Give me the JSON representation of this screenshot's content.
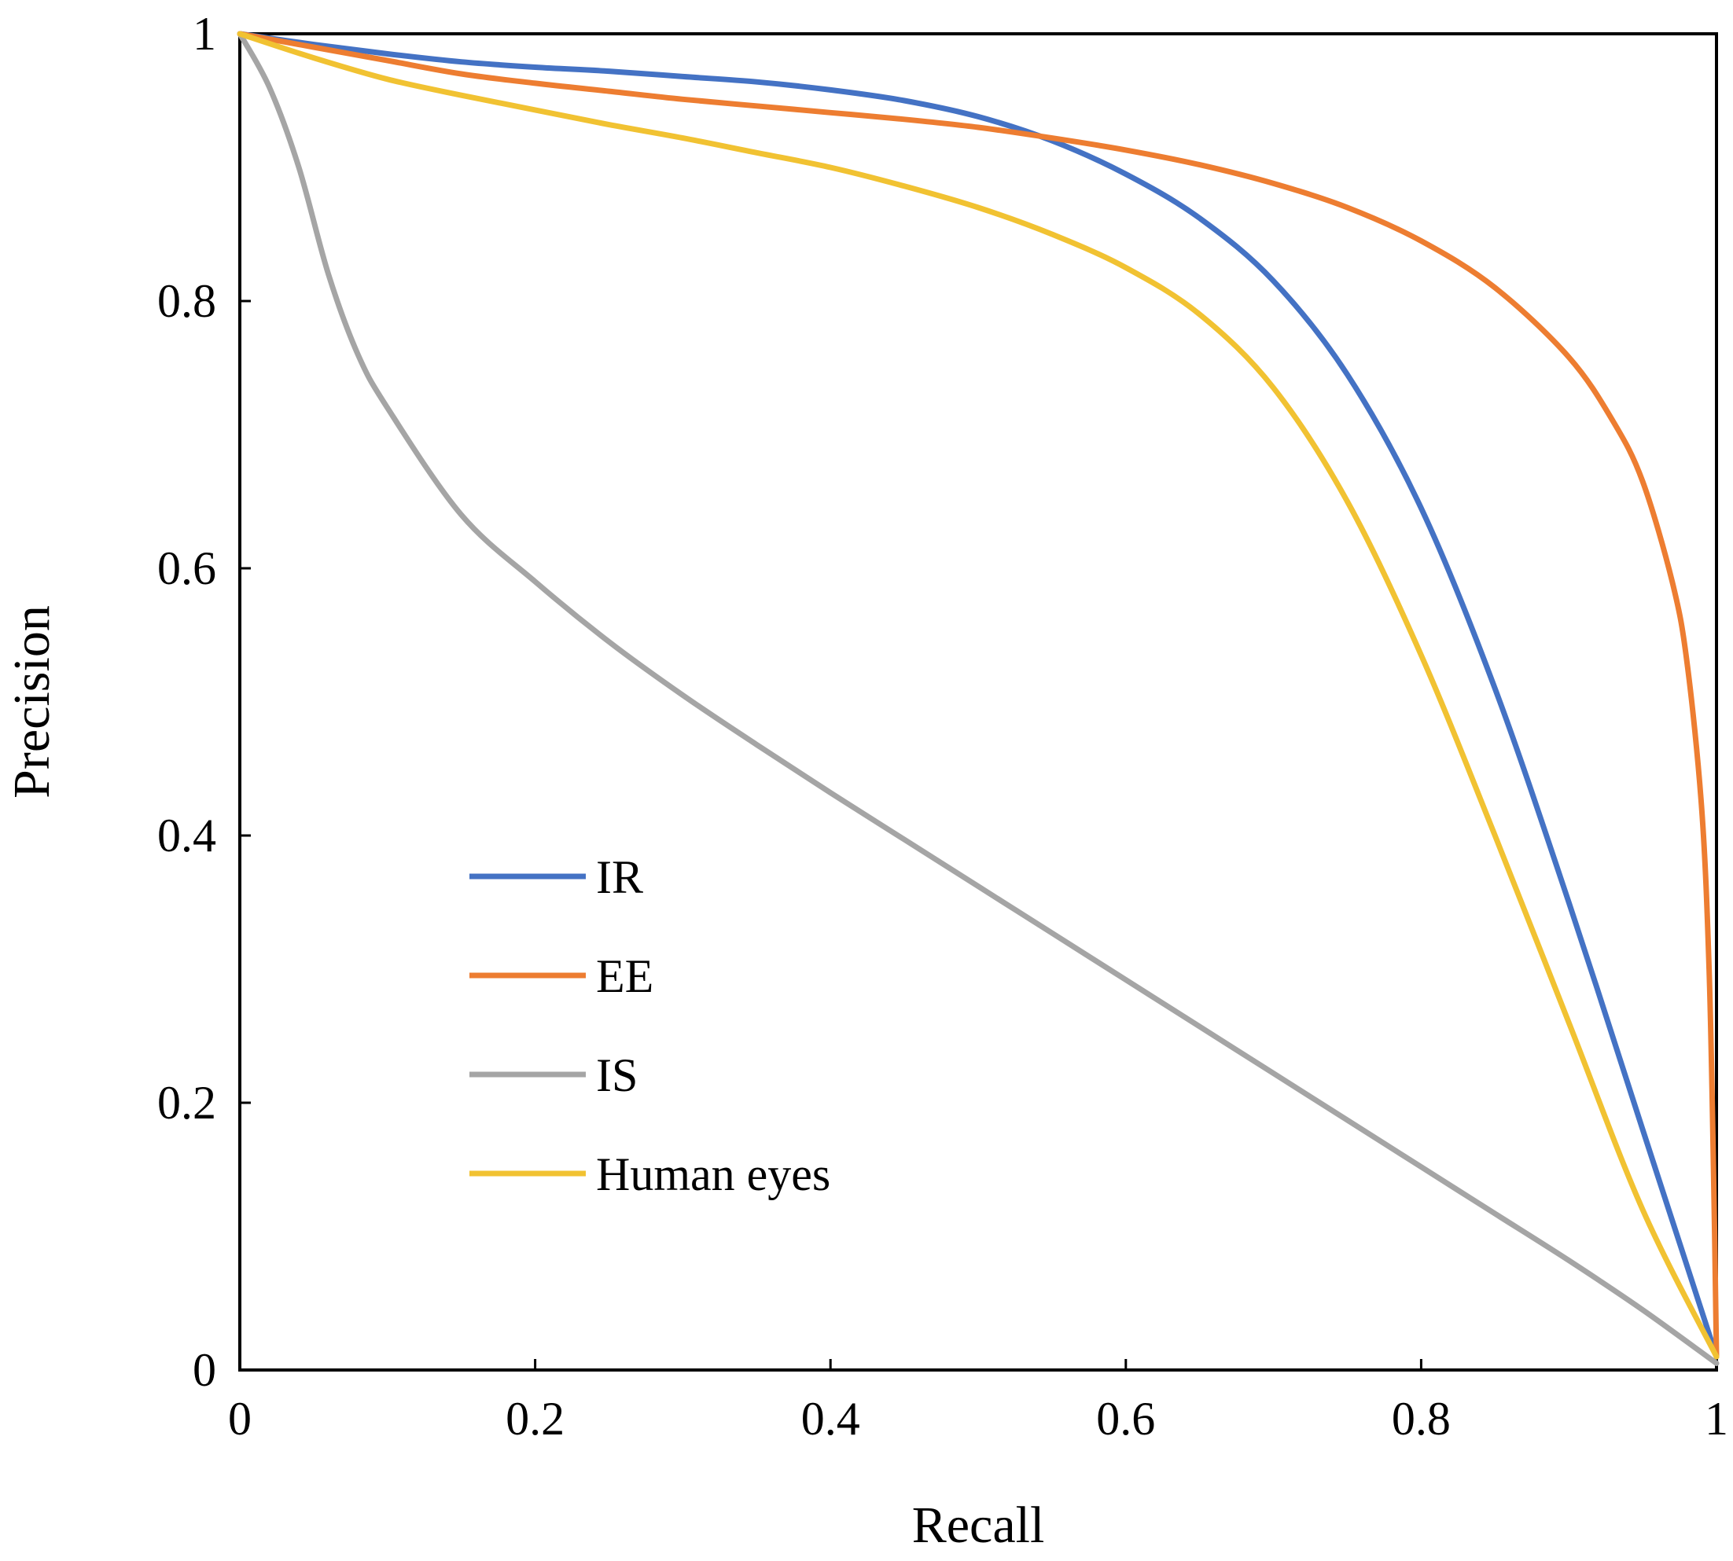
{
  "chart_data": {
    "type": "line",
    "title": "",
    "xlabel": "Recall",
    "ylabel": "Precision",
    "xlim": [
      0,
      1
    ],
    "ylim": [
      0,
      1
    ],
    "grid": false,
    "legend_position": "center-left",
    "x_ticks": [
      {
        "value": 0,
        "label": "0"
      },
      {
        "value": 0.2,
        "label": "0.2"
      },
      {
        "value": 0.4,
        "label": "0.4"
      },
      {
        "value": 0.6,
        "label": "0.6"
      },
      {
        "value": 0.8,
        "label": "0.8"
      },
      {
        "value": 1,
        "label": "1"
      }
    ],
    "y_ticks": [
      {
        "value": 0,
        "label": "0"
      },
      {
        "value": 0.2,
        "label": "0.2"
      },
      {
        "value": 0.4,
        "label": "0.4"
      },
      {
        "value": 0.6,
        "label": "0.6"
      },
      {
        "value": 0.8,
        "label": "0.8"
      },
      {
        "value": 1,
        "label": "1"
      }
    ],
    "series": [
      {
        "name": "IR",
        "color": "#4472C4",
        "points": [
          [
            0,
            1
          ],
          [
            0.05,
            0.992
          ],
          [
            0.1,
            0.985
          ],
          [
            0.15,
            0.979
          ],
          [
            0.2,
            0.975
          ],
          [
            0.25,
            0.972
          ],
          [
            0.3,
            0.968
          ],
          [
            0.35,
            0.964
          ],
          [
            0.4,
            0.958
          ],
          [
            0.45,
            0.95
          ],
          [
            0.5,
            0.938
          ],
          [
            0.55,
            0.92
          ],
          [
            0.6,
            0.895
          ],
          [
            0.65,
            0.862
          ],
          [
            0.7,
            0.815
          ],
          [
            0.75,
            0.745
          ],
          [
            0.8,
            0.645
          ],
          [
            0.85,
            0.51
          ],
          [
            0.9,
            0.35
          ],
          [
            0.95,
            0.18
          ],
          [
            0.975,
            0.095
          ],
          [
            1,
            0.01
          ]
        ]
      },
      {
        "name": "EE",
        "color": "#ED7D31",
        "points": [
          [
            0,
            1
          ],
          [
            0.05,
            0.99
          ],
          [
            0.1,
            0.98
          ],
          [
            0.15,
            0.97
          ],
          [
            0.2,
            0.963
          ],
          [
            0.25,
            0.957
          ],
          [
            0.3,
            0.951
          ],
          [
            0.35,
            0.946
          ],
          [
            0.4,
            0.941
          ],
          [
            0.45,
            0.936
          ],
          [
            0.5,
            0.93
          ],
          [
            0.55,
            0.922
          ],
          [
            0.6,
            0.913
          ],
          [
            0.65,
            0.902
          ],
          [
            0.7,
            0.888
          ],
          [
            0.75,
            0.87
          ],
          [
            0.8,
            0.845
          ],
          [
            0.85,
            0.81
          ],
          [
            0.9,
            0.758
          ],
          [
            0.93,
            0.71
          ],
          [
            0.95,
            0.665
          ],
          [
            0.97,
            0.59
          ],
          [
            0.98,
            0.53
          ],
          [
            0.99,
            0.42
          ],
          [
            0.995,
            0.3
          ],
          [
            0.998,
            0.15
          ],
          [
            1,
            0.01
          ]
        ]
      },
      {
        "name": "IS",
        "color": "#A5A5A5",
        "points": [
          [
            0,
            1
          ],
          [
            0.02,
            0.96
          ],
          [
            0.04,
            0.9
          ],
          [
            0.06,
            0.82
          ],
          [
            0.08,
            0.76
          ],
          [
            0.1,
            0.72
          ],
          [
            0.15,
            0.64
          ],
          [
            0.2,
            0.59
          ],
          [
            0.25,
            0.545
          ],
          [
            0.3,
            0.505
          ],
          [
            0.35,
            0.468
          ],
          [
            0.4,
            0.432
          ],
          [
            0.45,
            0.397
          ],
          [
            0.5,
            0.362
          ],
          [
            0.55,
            0.327
          ],
          [
            0.6,
            0.292
          ],
          [
            0.65,
            0.257
          ],
          [
            0.7,
            0.222
          ],
          [
            0.75,
            0.187
          ],
          [
            0.8,
            0.152
          ],
          [
            0.85,
            0.117
          ],
          [
            0.9,
            0.082
          ],
          [
            0.95,
            0.045
          ],
          [
            1,
            0.005
          ]
        ]
      },
      {
        "name": "Human eyes",
        "color": "#F1C232",
        "points": [
          [
            0,
            1
          ],
          [
            0.05,
            0.982
          ],
          [
            0.1,
            0.966
          ],
          [
            0.15,
            0.954
          ],
          [
            0.2,
            0.943
          ],
          [
            0.25,
            0.932
          ],
          [
            0.3,
            0.922
          ],
          [
            0.35,
            0.911
          ],
          [
            0.4,
            0.9
          ],
          [
            0.45,
            0.886
          ],
          [
            0.5,
            0.87
          ],
          [
            0.55,
            0.85
          ],
          [
            0.6,
            0.825
          ],
          [
            0.65,
            0.79
          ],
          [
            0.7,
            0.735
          ],
          [
            0.75,
            0.65
          ],
          [
            0.8,
            0.535
          ],
          [
            0.85,
            0.4
          ],
          [
            0.9,
            0.26
          ],
          [
            0.95,
            0.12
          ],
          [
            1,
            0.01
          ]
        ]
      }
    ]
  }
}
